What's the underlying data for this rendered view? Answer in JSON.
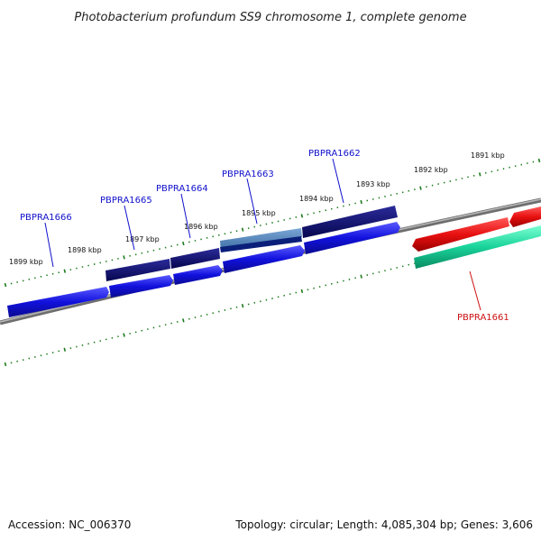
{
  "title": "Photobacterium profundum SS9 chromosome 1, complete genome",
  "footer": {
    "accession": "Accession: NC_006370",
    "summary": "Topology: circular; Length: 4,085,304 bp; Genes: 3,606"
  },
  "scale_labels": [
    "1899 kbp",
    "1898 kbp",
    "1897 kbp",
    "1896 kbp",
    "1895 kbp",
    "1894 kbp",
    "1893 kbp",
    "1892 kbp",
    "1891 kbp"
  ],
  "colors": {
    "backbone": "#8a8a8a",
    "tick": "#1d7a1d",
    "gene_forward": "#1111dd",
    "gene_dark": "#0b0b6e",
    "gene_highlight": "#4a7ab0",
    "gene_reverse": "#e81010",
    "gene_teal": "#19d39a",
    "label_blue": "#1010cc",
    "label_red": "#cc1111"
  },
  "gene_labels": [
    {
      "name": "PBPRA1666",
      "color": "label_blue"
    },
    {
      "name": "PBPRA1665",
      "color": "label_blue"
    },
    {
      "name": "PBPRA1664",
      "color": "label_blue"
    },
    {
      "name": "PBPRA1663",
      "color": "label_blue"
    },
    {
      "name": "PBPRA1662",
      "color": "label_blue"
    },
    {
      "name": "PBPRA1661",
      "color": "label_red"
    }
  ]
}
